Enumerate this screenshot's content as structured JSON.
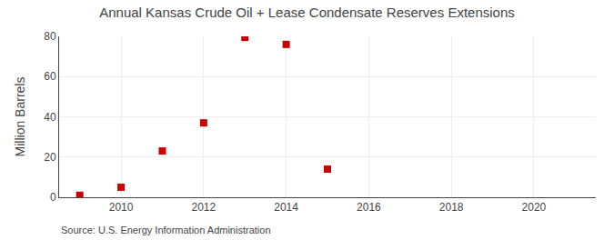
{
  "chart_data": {
    "type": "scatter",
    "title": "Annual Kansas Crude Oil + Lease Condensate Reserves Extensions",
    "y_label": "Million Barrels",
    "annotations": [
      "Source: U.S. Energy Information Administration"
    ],
    "x": [
      2009,
      2010,
      2011,
      2012,
      2013,
      2014,
      2015
    ],
    "values": [
      1.0,
      5.0,
      23.0,
      37.0,
      79.5,
      76.0,
      14.0
    ],
    "color": "#cc0000",
    "marker": "square",
    "xlim": [
      2008.5,
      2021.5
    ],
    "ylim": [
      0,
      80
    ],
    "xticks": [
      2010,
      2012,
      2014,
      2016,
      2018,
      2020
    ],
    "yticks": [
      0,
      20,
      40,
      60,
      80
    ],
    "grid": true
  }
}
